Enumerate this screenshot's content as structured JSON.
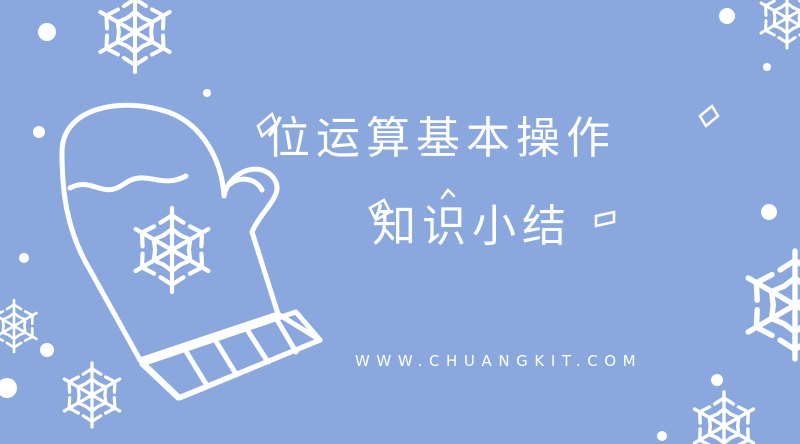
{
  "title": {
    "line1": "位运算基本操作",
    "line2": "知识小结"
  },
  "url": "WWW.CHUANGKIT.COM",
  "colors": {
    "background": "#8aa8de",
    "foreground": "#ffffff"
  },
  "icons": [
    "mitten-icon",
    "snowflake-icon",
    "snow-dot"
  ]
}
